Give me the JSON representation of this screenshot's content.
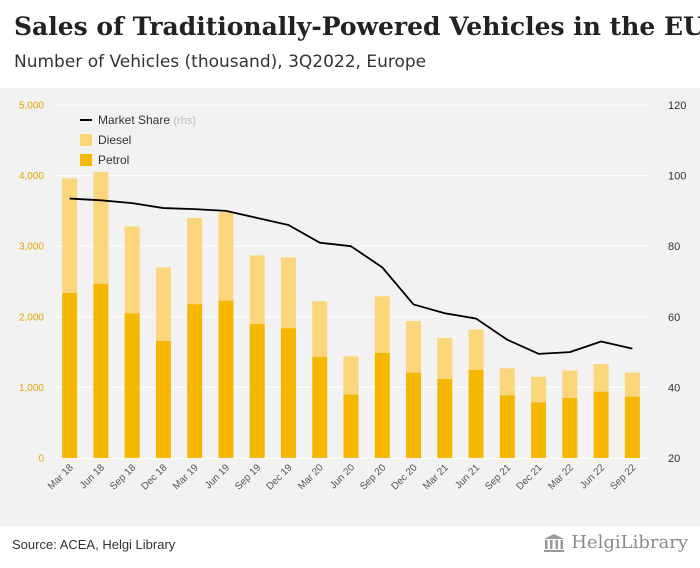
{
  "header": {
    "title": "Sales of Traditionally-Powered Vehicles in the EU",
    "subtitle": "Number of Vehicles (thousand), 3Q2022, Europe"
  },
  "footer": {
    "source": "Source: ACEA, Helgi Library",
    "logo": "HelgiLibrary"
  },
  "chart_data": {
    "type": "bar",
    "stacked": true,
    "categories": [
      "Mar 18",
      "Jun 18",
      "Sep 18",
      "Dec 18",
      "Mar 19",
      "Jun 19",
      "Sep 19",
      "Dec 19",
      "Mar 20",
      "Jun 20",
      "Sep 20",
      "Dec 20",
      "Mar 21",
      "Jun 21",
      "Sep 21",
      "Dec 21",
      "Mar 22",
      "Jun 22",
      "Sep 22"
    ],
    "series": [
      {
        "name": "Petrol",
        "values": [
          2340,
          2470,
          2050,
          1660,
          2180,
          2230,
          1900,
          1840,
          1430,
          900,
          1490,
          1210,
          1120,
          1250,
          890,
          790,
          850,
          940,
          870
        ],
        "color": "#f5b700",
        "axis": "left"
      },
      {
        "name": "Diesel",
        "values": [
          1620,
          1580,
          1230,
          1040,
          1220,
          1250,
          970,
          1000,
          790,
          540,
          800,
          730,
          580,
          570,
          380,
          360,
          390,
          390,
          340
        ],
        "color": "#fbd67a",
        "axis": "left"
      },
      {
        "name": "Market Share",
        "legend_suffix": "(rhs)",
        "values": [
          93.5,
          93.0,
          92.2,
          90.8,
          90.5,
          90.0,
          88.0,
          86.0,
          81.0,
          80.0,
          74.0,
          63.5,
          61.0,
          59.5,
          53.5,
          49.5,
          50.0,
          53.0,
          51.0
        ],
        "color": "#000000",
        "axis": "right",
        "kind": "line"
      }
    ],
    "yleft": {
      "ticks": [
        "0",
        "1,000",
        "2,000",
        "3,000",
        "4,000",
        "5,000"
      ],
      "min": 0,
      "max": 5000
    },
    "yright": {
      "ticks": [
        "20",
        "40",
        "60",
        "80",
        "100",
        "120"
      ],
      "min": 20,
      "max": 120
    },
    "legend_position": "top-left",
    "grid": true
  }
}
